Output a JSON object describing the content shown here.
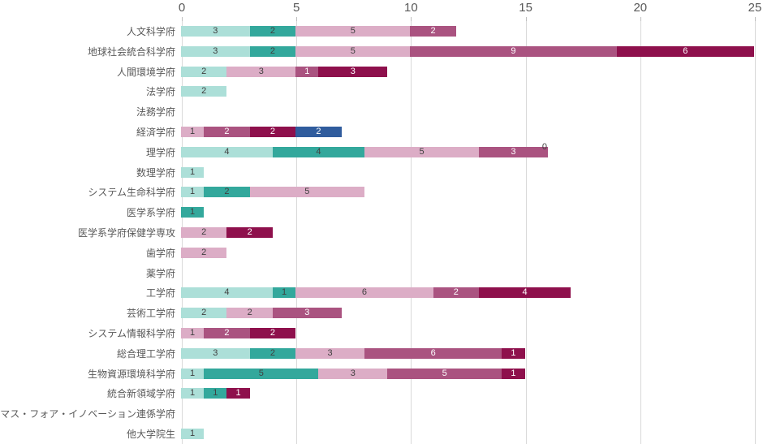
{
  "chart_data": {
    "type": "bar",
    "orientation": "horizontal",
    "stacked": true,
    "title": "",
    "xlabel": "",
    "ylabel": "",
    "xlim": [
      0,
      25
    ],
    "x_ticks": [
      0,
      5,
      10,
      15,
      20,
      25
    ],
    "grid": true,
    "legend_position": "none",
    "series": [
      {
        "name": "series-1-light-teal",
        "color": "#ACDFD8",
        "label_color": "#404040"
      },
      {
        "name": "series-2-teal",
        "color": "#33A89C",
        "label_color": "#404040"
      },
      {
        "name": "series-3-light-pink",
        "color": "#DCADC6",
        "label_color": "#404040"
      },
      {
        "name": "series-4-rose",
        "color": "#AA5380",
        "label_color": "#FFFFFF"
      },
      {
        "name": "series-5-dark-magenta",
        "color": "#8E104C",
        "label_color": "#FFFFFF"
      },
      {
        "name": "series-6-blue",
        "color": "#305C9D",
        "label_color": "#FFFFFF"
      }
    ],
    "categories": [
      "人文科学府",
      "地球社会統合科学府",
      "人間環境学府",
      "法学府",
      "法務学府",
      "経済学府",
      "理学府",
      "数理学府",
      "システム生命科学府",
      "医学系学府",
      "医学系学府保健学専攻",
      "歯学府",
      "薬学府",
      "工学府",
      "芸術工学府",
      "システム情報科学府",
      "総合理工学府",
      "生物資源環境科学府",
      "統合新領域学府",
      "マス・フォア・イノベーション連係学府",
      "他大学院生"
    ],
    "values": [
      [
        3,
        2,
        5,
        2,
        null,
        null
      ],
      [
        3,
        2,
        5,
        9,
        6,
        null
      ],
      [
        2,
        null,
        3,
        1,
        3,
        null
      ],
      [
        2,
        null,
        null,
        null,
        null,
        null
      ],
      [
        null,
        null,
        null,
        null,
        null,
        null
      ],
      [
        null,
        null,
        1,
        2,
        2,
        2
      ],
      [
        4,
        4,
        5,
        3,
        0,
        null
      ],
      [
        1,
        null,
        null,
        null,
        null,
        null
      ],
      [
        1,
        2,
        5,
        null,
        null,
        null
      ],
      [
        null,
        1,
        null,
        null,
        null,
        null
      ],
      [
        null,
        null,
        2,
        null,
        2,
        null
      ],
      [
        null,
        null,
        2,
        null,
        null,
        null
      ],
      [
        null,
        null,
        null,
        null,
        null,
        null
      ],
      [
        4,
        1,
        6,
        2,
        4,
        null
      ],
      [
        2,
        null,
        2,
        3,
        null,
        null
      ],
      [
        null,
        null,
        1,
        2,
        2,
        null
      ],
      [
        3,
        2,
        3,
        6,
        1,
        null
      ],
      [
        1,
        5,
        3,
        5,
        1,
        null
      ],
      [
        1,
        1,
        null,
        null,
        1,
        null
      ],
      [
        null,
        null,
        null,
        null,
        null,
        null
      ],
      [
        1,
        null,
        null,
        null,
        null,
        null
      ]
    ],
    "colors": {
      "gridline": "#d9d9d9",
      "tick_text": "#595959",
      "category_text": "#595959"
    }
  }
}
